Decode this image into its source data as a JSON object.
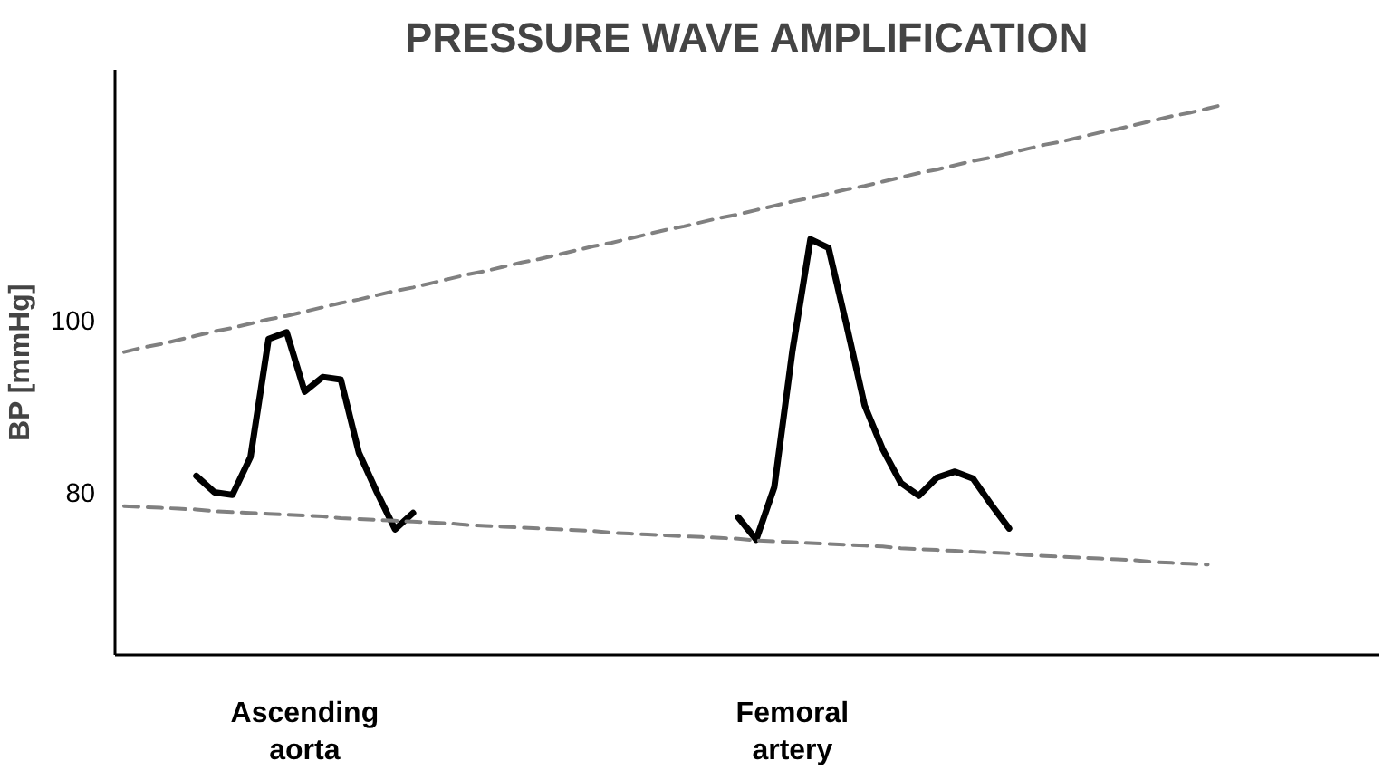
{
  "chart_data": {
    "type": "line",
    "title": "PRESSURE WAVE AMPLIFICATION",
    "ylabel": "BP [mmHg]",
    "categories": [
      null,
      null,
      null,
      null,
      null,
      null,
      null,
      null,
      null,
      null,
      "Ascending aorta",
      null,
      null,
      null,
      null,
      null,
      null,
      null,
      null,
      null,
      null,
      null,
      null,
      null,
      null,
      null,
      null,
      null,
      null,
      null,
      null,
      null,
      null,
      null,
      null,
      null,
      null,
      "Femoral artery",
      null,
      null,
      null,
      null,
      null,
      null,
      null,
      null,
      null,
      null,
      null,
      null,
      null,
      null,
      null,
      null,
      null,
      null,
      null,
      null,
      null,
      null,
      null,
      null,
      null,
      null,
      null,
      null,
      null,
      null,
      null,
      null
    ],
    "ylim": [
      61,
      129
    ],
    "yticks": [
      80,
      100
    ],
    "grid": false,
    "marker": "none",
    "series": [
      {
        "color": "#000000",
        "line_style": "solid",
        "values": [
          null,
          null,
          null,
          null,
          81.8,
          79.9,
          79.6,
          84.0,
          97.7,
          98.5,
          91.6,
          93.3,
          93.0,
          84.5,
          79.9,
          75.6,
          77.5,
          null,
          null,
          null,
          null,
          null,
          null,
          null,
          null,
          null,
          null,
          null,
          null,
          null,
          null,
          null,
          null,
          null,
          null,
          null,
          null,
          null,
          null,
          null,
          null,
          null,
          null,
          null,
          null,
          null,
          null,
          null,
          null,
          null,
          null,
          null,
          null,
          null,
          null,
          null,
          null,
          null,
          null,
          null,
          null,
          null,
          null,
          null,
          null,
          null,
          null,
          null,
          null,
          null
        ]
      },
      {
        "color": "#000000",
        "line_style": "solid",
        "values": [
          null,
          null,
          null,
          null,
          null,
          null,
          null,
          null,
          null,
          null,
          null,
          null,
          null,
          null,
          null,
          null,
          null,
          null,
          null,
          null,
          null,
          null,
          null,
          null,
          null,
          null,
          null,
          null,
          null,
          null,
          null,
          null,
          null,
          null,
          77.0,
          74.4,
          80.5,
          96.3,
          109.3,
          108.3,
          99.3,
          90.0,
          84.9,
          81.0,
          79.5,
          81.6,
          82.3,
          81.5,
          78.5,
          75.7,
          null,
          null,
          null,
          null,
          null,
          null,
          null,
          null,
          null,
          null,
          null,
          null,
          null,
          null,
          null,
          null,
          null,
          null,
          null,
          null
        ]
      },
      {
        "color": "#808080",
        "line_style": "dashed",
        "values": [
          96.2,
          96.7,
          97.1,
          97.6,
          98.1,
          98.6,
          99.0,
          99.5,
          100.0,
          100.4,
          100.9,
          101.4,
          101.9,
          102.3,
          102.8,
          103.3,
          103.7,
          104.2,
          104.7,
          105.2,
          105.6,
          106.1,
          106.6,
          107.0,
          107.5,
          108.0,
          108.5,
          108.9,
          109.4,
          109.9,
          110.4,
          110.8,
          111.3,
          111.8,
          112.2,
          112.7,
          113.2,
          113.7,
          114.1,
          114.6,
          115.1,
          115.5,
          116.0,
          116.5,
          117.0,
          117.4,
          117.9,
          118.4,
          118.8,
          119.3,
          119.8,
          120.3,
          120.7,
          121.2,
          121.7,
          122.1,
          122.6,
          123.1,
          123.6,
          124.0,
          124.5,
          125.0,
          null,
          null,
          null,
          null,
          null,
          null,
          null,
          null
        ]
      },
      {
        "color": "#808080",
        "line_style": "dashed",
        "values": [
          78.3,
          78.2,
          78.1,
          78.0,
          77.9,
          77.7,
          77.6,
          77.5,
          77.4,
          77.3,
          77.2,
          77.1,
          76.9,
          76.8,
          76.7,
          76.6,
          76.5,
          76.4,
          76.3,
          76.1,
          76.0,
          75.9,
          75.8,
          75.7,
          75.6,
          75.5,
          75.4,
          75.2,
          75.1,
          75.0,
          74.9,
          74.8,
          74.7,
          74.6,
          74.5,
          74.3,
          74.2,
          74.1,
          74.0,
          73.9,
          73.8,
          73.7,
          73.6,
          73.4,
          73.3,
          73.2,
          73.1,
          73.0,
          72.9,
          72.8,
          72.6,
          72.5,
          72.4,
          72.3,
          72.2,
          72.1,
          72.0,
          71.8,
          71.7,
          71.6,
          71.5,
          null,
          null,
          null,
          null,
          null,
          null,
          null,
          null,
          null
        ]
      }
    ]
  }
}
